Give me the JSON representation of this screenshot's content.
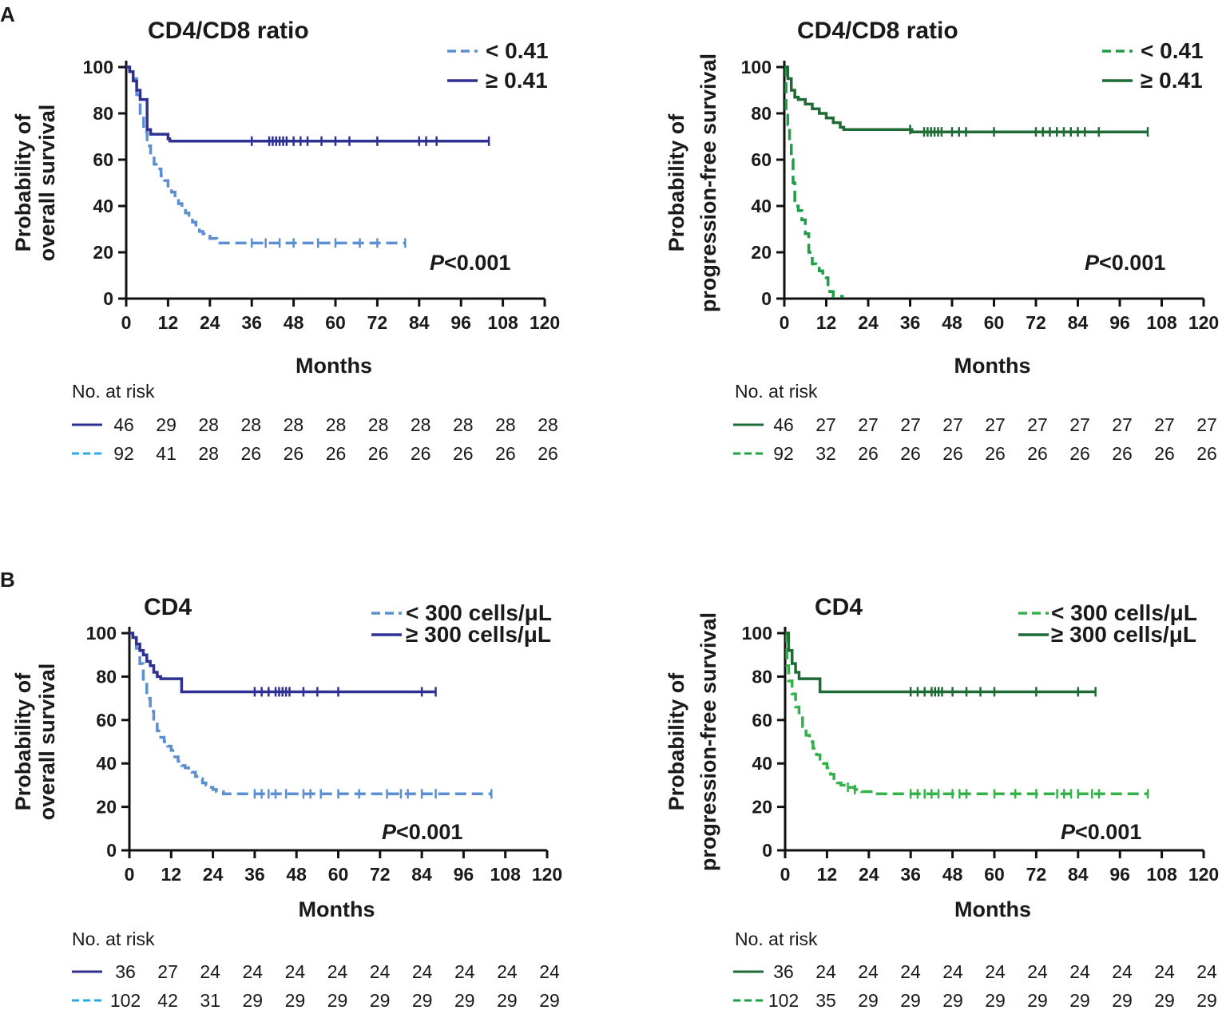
{
  "panel_labels": [
    "A",
    "B"
  ],
  "risk_title": "No. at risk",
  "p_label": "P",
  "p_suffix": "<0.001",
  "chart_data": [
    {
      "type": "line",
      "panel": "A",
      "title": "CD4/CD8 ratio",
      "xlabel": "Months",
      "ylabel": [
        "Probability of",
        "overall survival"
      ],
      "xlim": [
        0,
        120
      ],
      "ylim": [
        0,
        100
      ],
      "xticks": [
        0,
        12,
        24,
        36,
        48,
        60,
        72,
        84,
        96,
        108,
        120
      ],
      "yticks": [
        0,
        20,
        40,
        60,
        80,
        100
      ],
      "p_value": "P<0.001",
      "series": [
        {
          "name": "< 0.41",
          "legend_label": "< 0.41",
          "style": "dashed",
          "color": "#5b8fd1",
          "points": [
            [
              0,
              100
            ],
            [
              1,
              98
            ],
            [
              2,
              95
            ],
            [
              3,
              88
            ],
            [
              4,
              80
            ],
            [
              5,
              72
            ],
            [
              6,
              66
            ],
            [
              7,
              62
            ],
            [
              8,
              58
            ],
            [
              9,
              56
            ],
            [
              10,
              53
            ],
            [
              11,
              51
            ],
            [
              12,
              48
            ],
            [
              13,
              46
            ],
            [
              14,
              43
            ],
            [
              15,
              41
            ],
            [
              16,
              39
            ],
            [
              17,
              37
            ],
            [
              18,
              35
            ],
            [
              19,
              33
            ],
            [
              20,
              31
            ],
            [
              21,
              29
            ],
            [
              22,
              28
            ],
            [
              23,
              27
            ],
            [
              24,
              26
            ],
            [
              26,
              24
            ],
            [
              80,
              24
            ]
          ],
          "censors": [
            36,
            40,
            44,
            48,
            55,
            60,
            67,
            72,
            80
          ],
          "risk_line_color": "#2ca9e0",
          "at_risk": [
            "92",
            "41",
            "28",
            "26",
            "26",
            "26",
            "26",
            "26",
            "26",
            "26",
            "26"
          ]
        },
        {
          "name": "≥ 0.41",
          "legend_label": "≥ 0.41",
          "style": "solid",
          "color": "#2e3192",
          "points": [
            [
              0,
              100
            ],
            [
              1,
              98
            ],
            [
              2,
              94
            ],
            [
              3,
              90
            ],
            [
              4,
              86
            ],
            [
              5,
              86
            ],
            [
              6,
              73
            ],
            [
              7,
              71
            ],
            [
              12,
              69
            ],
            [
              12.5,
              68
            ],
            [
              104,
              68
            ]
          ],
          "censors": [
            36,
            41,
            42,
            43,
            44,
            45,
            46,
            48,
            50,
            52,
            56,
            60,
            64,
            72,
            84,
            86,
            89,
            104
          ],
          "risk_line_color": "#2e3192",
          "at_risk": [
            "46",
            "29",
            "28",
            "28",
            "28",
            "28",
            "28",
            "28",
            "28",
            "28",
            "28"
          ]
        }
      ]
    },
    {
      "type": "line",
      "panel": "A",
      "title": "CD4/CD8 ratio",
      "xlabel": "Months",
      "ylabel": [
        "Probability of",
        "progression-free survival"
      ],
      "xlim": [
        0,
        120
      ],
      "ylim": [
        0,
        100
      ],
      "xticks": [
        0,
        12,
        24,
        36,
        48,
        60,
        72,
        84,
        96,
        108,
        120
      ],
      "yticks": [
        0,
        20,
        40,
        60,
        80,
        100
      ],
      "p_value": "P<0.001",
      "series": [
        {
          "name": "< 0.41",
          "legend_label": "< 0.41",
          "style": "dashed",
          "color": "#1f9e46",
          "points": [
            [
              0,
              100
            ],
            [
              0.5,
              80
            ],
            [
              1,
              75
            ],
            [
              1.5,
              68
            ],
            [
              2,
              60
            ],
            [
              2.5,
              50
            ],
            [
              3,
              40
            ],
            [
              4,
              38
            ],
            [
              5,
              34
            ],
            [
              6,
              28
            ],
            [
              7,
              20
            ],
            [
              8,
              15
            ],
            [
              9,
              14
            ],
            [
              10,
              12
            ],
            [
              11,
              11
            ],
            [
              12,
              9
            ],
            [
              12.5,
              6
            ],
            [
              13,
              3
            ],
            [
              14,
              1
            ],
            [
              17,
              1
            ]
          ],
          "censors": [],
          "risk_line_color": "#1f9e46",
          "at_risk": [
            "92",
            "32",
            "26",
            "26",
            "26",
            "26",
            "26",
            "26",
            "26",
            "26",
            "26"
          ]
        },
        {
          "name": "≥ 0.41",
          "legend_label": "≥ 0.41",
          "style": "solid",
          "color": "#1f6b36",
          "points": [
            [
              0,
              100
            ],
            [
              1,
              95
            ],
            [
              2,
              90
            ],
            [
              3,
              87
            ],
            [
              4,
              86
            ],
            [
              6,
              84
            ],
            [
              8,
              82
            ],
            [
              10,
              80
            ],
            [
              12,
              78
            ],
            [
              14,
              76
            ],
            [
              16,
              74
            ],
            [
              17,
              73
            ],
            [
              36,
              73
            ],
            [
              36.5,
              72
            ],
            [
              104,
              72
            ]
          ],
          "censors": [
            36,
            40,
            41,
            42,
            43,
            44,
            45,
            48,
            50,
            52,
            60,
            72,
            74,
            76,
            78,
            80,
            82,
            84,
            86,
            90,
            104
          ],
          "risk_line_color": "#1f6b36",
          "at_risk": [
            "46",
            "27",
            "27",
            "27",
            "27",
            "27",
            "27",
            "27",
            "27",
            "27",
            "27"
          ]
        }
      ]
    },
    {
      "type": "line",
      "panel": "B",
      "title": "CD4",
      "xlabel": "Months",
      "ylabel": [
        "Probability of",
        "overall survival"
      ],
      "xlim": [
        0,
        120
      ],
      "ylim": [
        0,
        100
      ],
      "xticks": [
        0,
        12,
        24,
        36,
        48,
        60,
        72,
        84,
        96,
        108,
        120
      ],
      "yticks": [
        0,
        20,
        40,
        60,
        80,
        100
      ],
      "p_value": "P<0.001",
      "series": [
        {
          "name": "< 300 cells/μL",
          "legend_label": "< 300 cells/μL",
          "style": "dashed",
          "color": "#5b8fd1",
          "points": [
            [
              0,
              100
            ],
            [
              1,
              98
            ],
            [
              2,
              93
            ],
            [
              3,
              86
            ],
            [
              4,
              78
            ],
            [
              5,
              70
            ],
            [
              6,
              64
            ],
            [
              7,
              59
            ],
            [
              8,
              55
            ],
            [
              9,
              52
            ],
            [
              10,
              50
            ],
            [
              11,
              48
            ],
            [
              12,
              46
            ],
            [
              13,
              43
            ],
            [
              14,
              41
            ],
            [
              15,
              39
            ],
            [
              16,
              38
            ],
            [
              17,
              37
            ],
            [
              18,
              36
            ],
            [
              19,
              34
            ],
            [
              20,
              33
            ],
            [
              21,
              31
            ],
            [
              22,
              30
            ],
            [
              23,
              29
            ],
            [
              24,
              28
            ],
            [
              25,
              27
            ],
            [
              27,
              26
            ],
            [
              104,
              26
            ]
          ],
          "censors": [
            36,
            38,
            40,
            42,
            45,
            50,
            52,
            55,
            60,
            66,
            74,
            78,
            80,
            84,
            88,
            104
          ],
          "risk_line_color": "#2ca9e0",
          "at_risk": [
            "102",
            "42",
            "31",
            "29",
            "29",
            "29",
            "29",
            "29",
            "29",
            "29",
            "29"
          ]
        },
        {
          "name": "≥ 300 cells/μL",
          "legend_label": "≥ 300 cells/μL",
          "style": "solid",
          "color": "#2e3192",
          "points": [
            [
              0,
              100
            ],
            [
              1,
              98
            ],
            [
              2,
              95
            ],
            [
              3,
              92
            ],
            [
              4,
              90
            ],
            [
              5,
              87
            ],
            [
              6,
              85
            ],
            [
              7,
              82
            ],
            [
              8,
              80
            ],
            [
              9,
              79
            ],
            [
              14,
              79
            ],
            [
              15,
              73
            ],
            [
              88,
              73
            ]
          ],
          "censors": [
            36,
            38,
            40,
            42,
            43,
            44,
            45,
            46,
            50,
            54,
            60,
            84,
            88
          ],
          "risk_line_color": "#2e3192",
          "at_risk": [
            "36",
            "27",
            "24",
            "24",
            "24",
            "24",
            "24",
            "24",
            "24",
            "24",
            "24"
          ]
        }
      ]
    },
    {
      "type": "line",
      "panel": "B",
      "title": "CD4",
      "xlabel": "Months",
      "ylabel": [
        "Probability of",
        "progression-free survival"
      ],
      "xlim": [
        0,
        120
      ],
      "ylim": [
        0,
        100
      ],
      "xticks": [
        0,
        12,
        24,
        36,
        48,
        60,
        72,
        84,
        96,
        108,
        120
      ],
      "yticks": [
        0,
        20,
        40,
        60,
        80,
        100
      ],
      "p_value": "P<0.001",
      "series": [
        {
          "name": "< 300 cells/μL",
          "legend_label": "< 300 cells/μL",
          "style": "dashed",
          "color": "#33b24a",
          "points": [
            [
              0,
              100
            ],
            [
              0.5,
              85
            ],
            [
              1,
              78
            ],
            [
              2,
              72
            ],
            [
              3,
              66
            ],
            [
              4,
              61
            ],
            [
              5,
              57
            ],
            [
              6,
              53
            ],
            [
              7,
              50
            ],
            [
              8,
              47
            ],
            [
              9,
              44
            ],
            [
              10,
              42
            ],
            [
              11,
              40
            ],
            [
              12,
              38
            ],
            [
              13,
              35
            ],
            [
              14,
              33
            ],
            [
              15,
              31
            ],
            [
              16,
              30
            ],
            [
              18,
              29
            ],
            [
              20,
              28
            ],
            [
              22,
              27
            ],
            [
              24,
              27
            ],
            [
              26,
              26
            ],
            [
              104,
              26
            ]
          ],
          "censors": [
            18,
            20,
            36,
            38,
            40,
            42,
            44,
            48,
            50,
            52,
            60,
            66,
            72,
            78,
            80,
            82,
            84,
            88,
            90,
            104
          ],
          "risk_line_color": "#1f9e46",
          "at_risk": [
            "102",
            "35",
            "29",
            "29",
            "29",
            "29",
            "29",
            "29",
            "29",
            "29",
            "29"
          ]
        },
        {
          "name": "≥ 300 cells/μL",
          "legend_label": "≥ 300 cells/μL",
          "style": "solid",
          "color": "#1f6b36",
          "points": [
            [
              0,
              100
            ],
            [
              1,
              92
            ],
            [
              2,
              86
            ],
            [
              3,
              82
            ],
            [
              4,
              79
            ],
            [
              9,
              79
            ],
            [
              10,
              73
            ],
            [
              89,
              73
            ]
          ],
          "censors": [
            36,
            38,
            40,
            42,
            43,
            44,
            45,
            48,
            52,
            56,
            60,
            72,
            84,
            89
          ],
          "risk_line_color": "#1f6b36",
          "at_risk": [
            "36",
            "24",
            "24",
            "24",
            "24",
            "24",
            "24",
            "24",
            "24",
            "24",
            "24"
          ]
        }
      ]
    }
  ]
}
